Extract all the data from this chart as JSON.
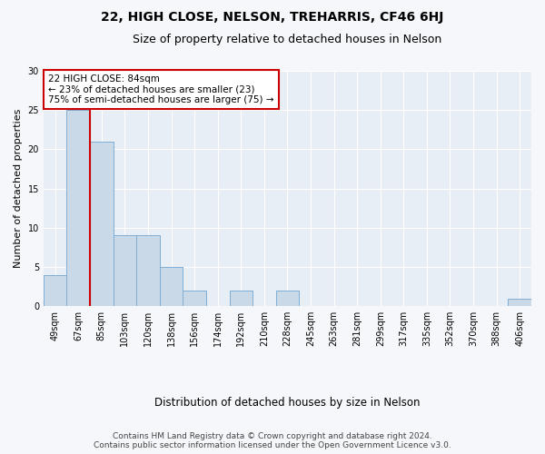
{
  "title": "22, HIGH CLOSE, NELSON, TREHARRIS, CF46 6HJ",
  "subtitle": "Size of property relative to detached houses in Nelson",
  "xlabel": "Distribution of detached houses by size in Nelson",
  "ylabel": "Number of detached properties",
  "categories": [
    "49sqm",
    "67sqm",
    "85sqm",
    "103sqm",
    "120sqm",
    "138sqm",
    "156sqm",
    "174sqm",
    "192sqm",
    "210sqm",
    "228sqm",
    "245sqm",
    "263sqm",
    "281sqm",
    "299sqm",
    "317sqm",
    "335sqm",
    "352sqm",
    "370sqm",
    "388sqm",
    "406sqm"
  ],
  "values": [
    4,
    25,
    21,
    9,
    9,
    5,
    2,
    0,
    2,
    0,
    2,
    0,
    0,
    0,
    0,
    0,
    0,
    0,
    0,
    0,
    1
  ],
  "bar_color": "#c9d9e8",
  "bar_edge_color": "#7eadd4",
  "bar_linewidth": 0.7,
  "vline_color": "#cc0000",
  "vline_linewidth": 1.5,
  "annotation_line1": "22 HIGH CLOSE: 84sqm",
  "annotation_line2": "← 23% of detached houses are smaller (23)",
  "annotation_line3": "75% of semi-detached houses are larger (75) →",
  "annotation_box_color": "#ffffff",
  "annotation_box_edge": "#cc0000",
  "ylim": [
    0,
    30
  ],
  "yticks": [
    0,
    5,
    10,
    15,
    20,
    25,
    30
  ],
  "plot_bg_color": "#e8eef5",
  "grid_color": "#ffffff",
  "fig_bg_color": "#f5f7fa",
  "footer_line1": "Contains HM Land Registry data © Crown copyright and database right 2024.",
  "footer_line2": "Contains public sector information licensed under the Open Government Licence v3.0.",
  "title_fontsize": 10,
  "subtitle_fontsize": 9,
  "xlabel_fontsize": 8.5,
  "ylabel_fontsize": 8,
  "tick_fontsize": 7,
  "annotation_fontsize": 7.5,
  "footer_fontsize": 6.5
}
